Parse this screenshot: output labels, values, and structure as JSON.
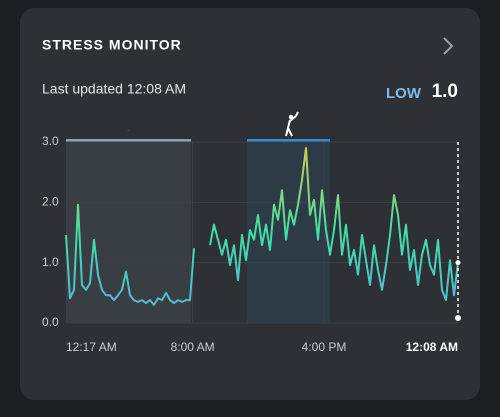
{
  "chart_data": {
    "type": "line",
    "title": "STRESS MONITOR",
    "subtitle": "Last updated 12:08 AM",
    "status": "LOW",
    "current": {
      "value": 1.0,
      "label": "1.0"
    },
    "xlim": [
      0,
      98
    ],
    "xticks": [
      {
        "value": 0,
        "label": "12:17 AM"
      },
      {
        "value": 31.65,
        "label": "8:00 AM"
      },
      {
        "value": 64.5,
        "label": "4:00 PM"
      },
      {
        "value": 98,
        "label": "12:08 AM"
      }
    ],
    "ylim": [
      0,
      3
    ],
    "yticks": [
      {
        "value": 0,
        "label": "0.0"
      },
      {
        "value": 1,
        "label": "1.0"
      },
      {
        "value": 2,
        "label": "2.0"
      },
      {
        "value": 3,
        "label": "3.0"
      }
    ],
    "grid": true,
    "gradient_colors": [
      "#5ab0e0",
      "#3ee0a8",
      "#d8cf48"
    ],
    "bands": [
      {
        "start": 0,
        "end": 31.25,
        "color": "#8fa3b8"
      },
      {
        "start": 45.25,
        "end": 66,
        "color": "#2f8fd8"
      }
    ],
    "series": [
      {
        "values": [
          1.46,
          0.41,
          0.55,
          1.96,
          0.63,
          0.55,
          0.66,
          1.38,
          0.8,
          0.55,
          0.46,
          0.46,
          0.38,
          0.46,
          0.55,
          0.85,
          0.46,
          0.38,
          0.35,
          0.38,
          0.33,
          0.38,
          0.3,
          0.41,
          0.38,
          0.5,
          0.38,
          0.33,
          0.38,
          0.35,
          0.38,
          0.38,
          1.24,
          null,
          null,
          null,
          1.29,
          1.63,
          1.38,
          1.13,
          1.38,
          0.96,
          1.29,
          0.71,
          1.46,
          1.04,
          1.54,
          1.38,
          1.79,
          1.29,
          1.63,
          1.21,
          1.96,
          1.71,
          2.2,
          1.38,
          1.87,
          1.63,
          1.96,
          2.37,
          2.9,
          1.79,
          2.04,
          1.38,
          2.2,
          1.54,
          1.13,
          1.54,
          2.12,
          1.13,
          1.63,
          0.96,
          1.21,
          0.8,
          1.46,
          1.04,
          0.63,
          1.29,
          0.88,
          0.55,
          0.96,
          1.46,
          2.12,
          1.79,
          1.13,
          1.63,
          0.88,
          1.21,
          0.63,
          1.13,
          1.38,
          0.96,
          0.8,
          1.38,
          0.55,
          0.38,
          1.04,
          0.46,
          1.0
        ]
      }
    ]
  }
}
